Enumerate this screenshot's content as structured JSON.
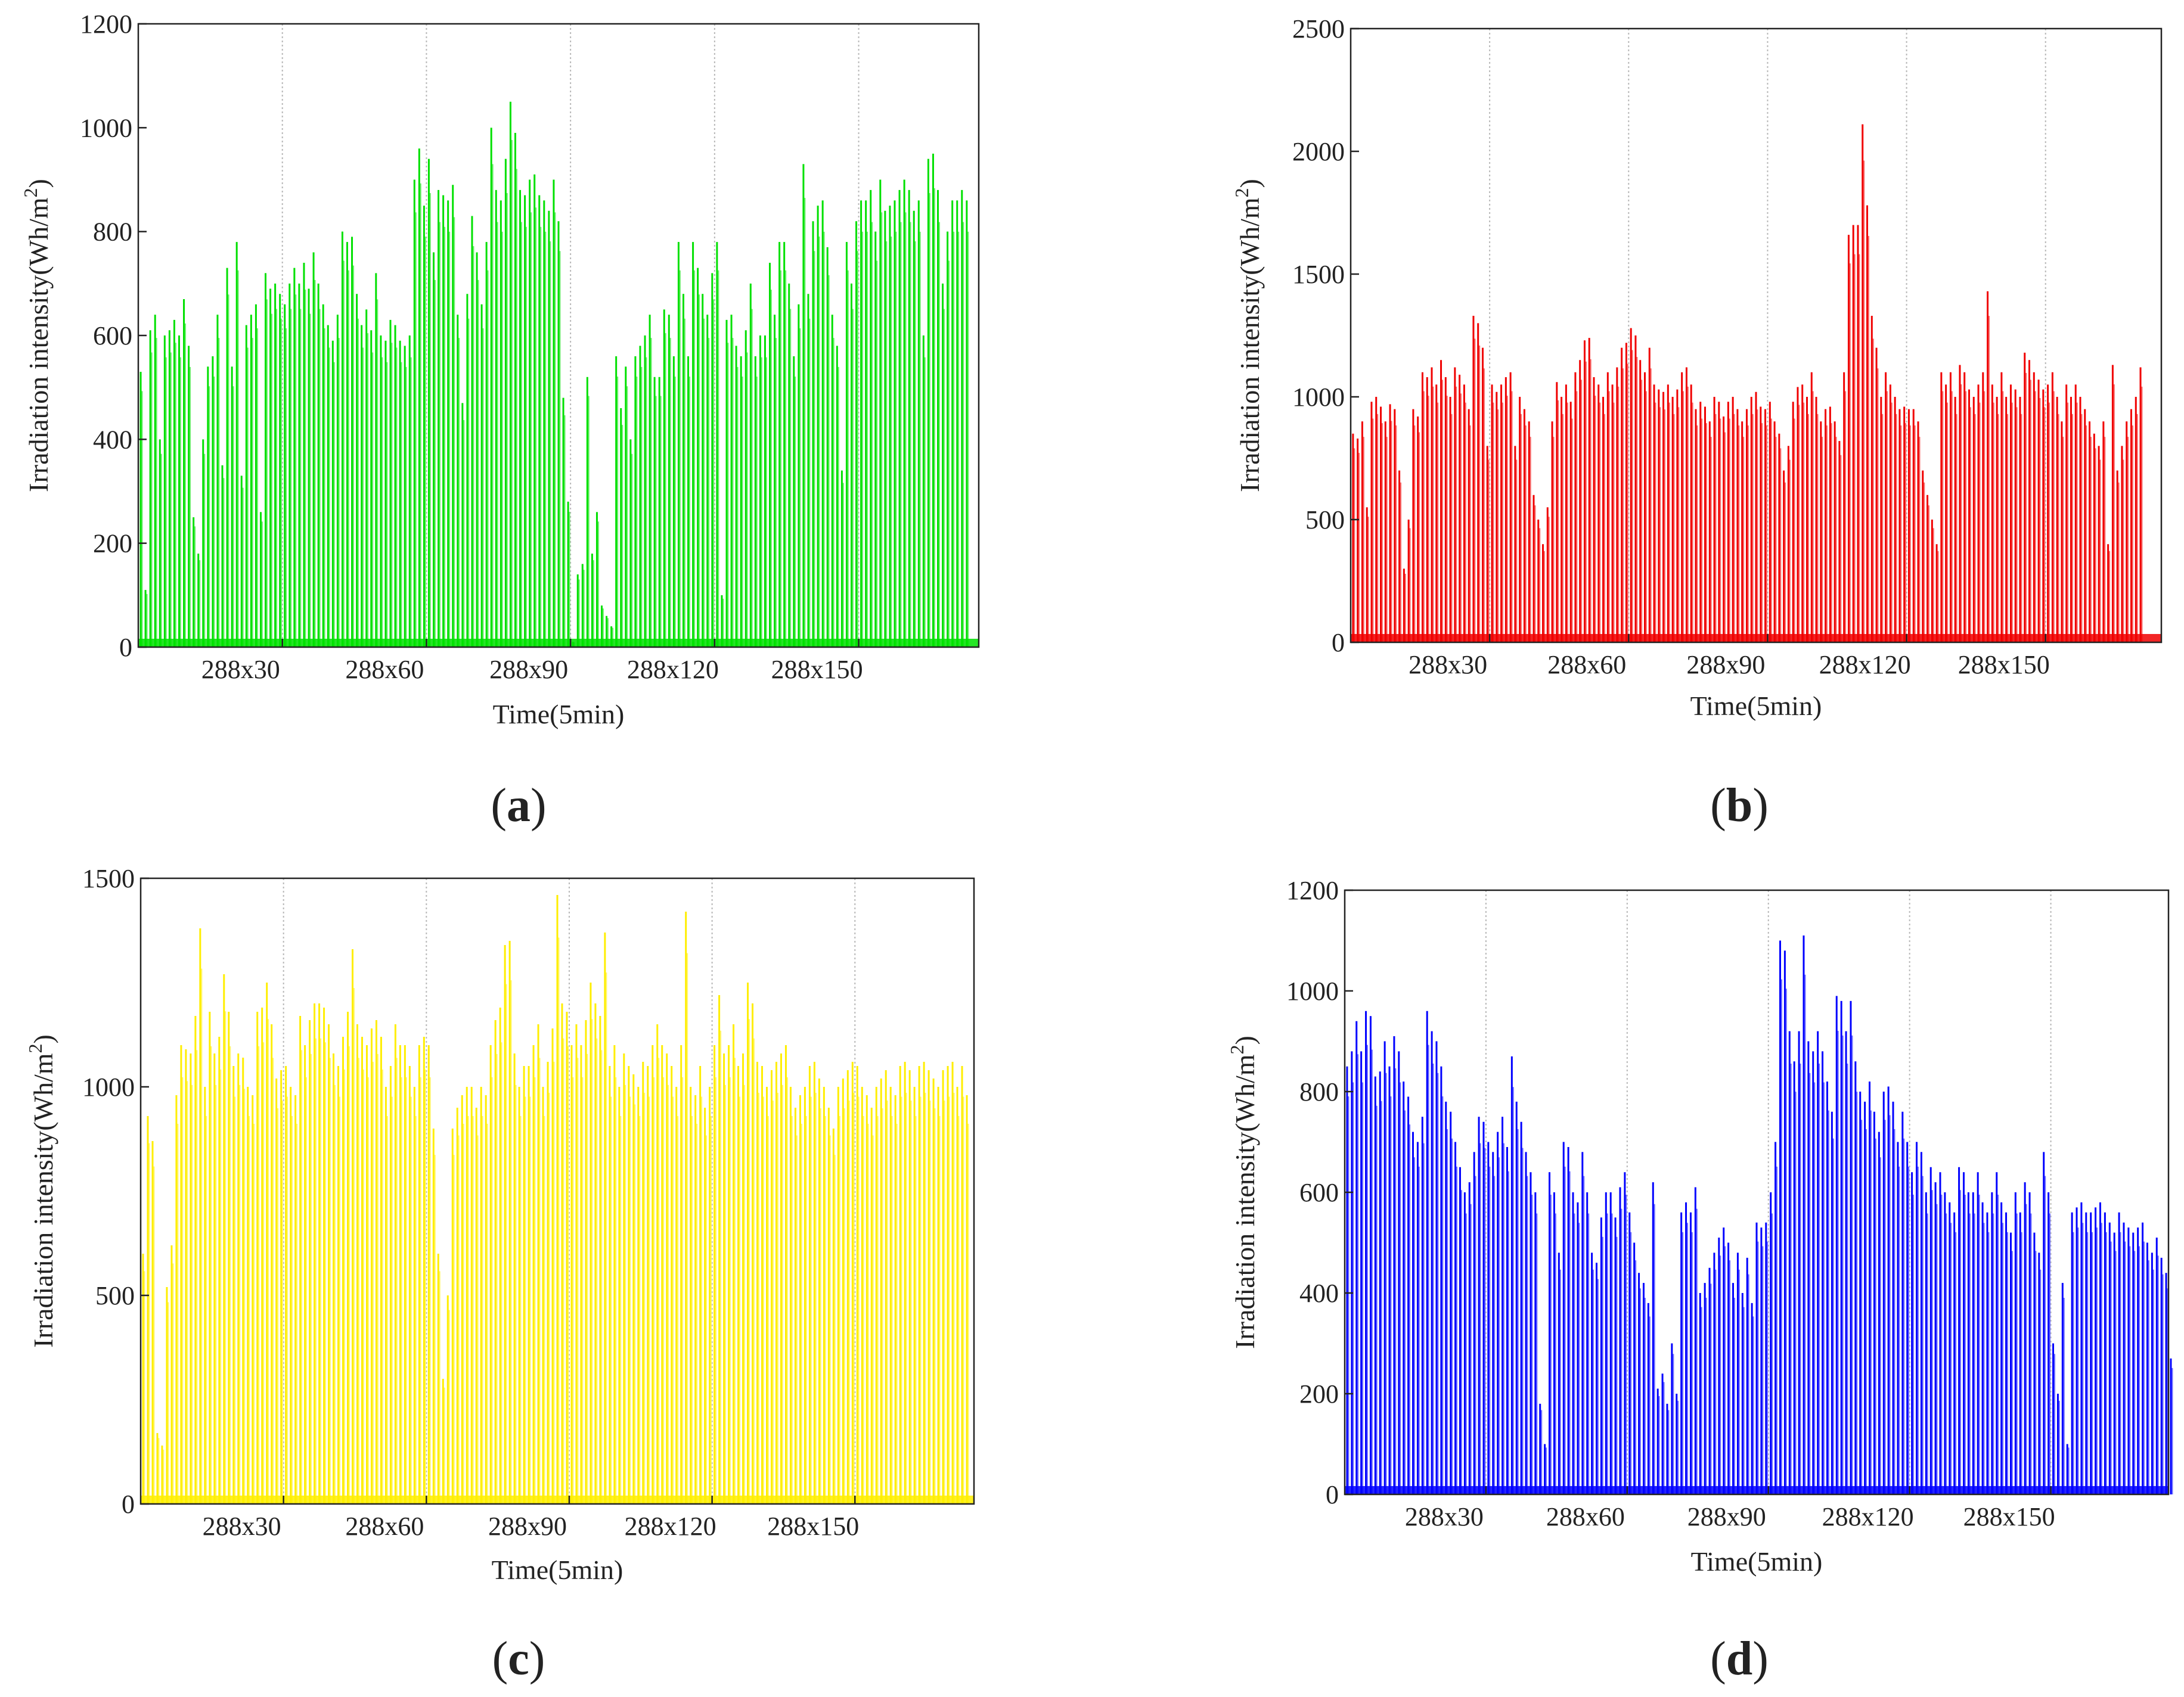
{
  "figure": {
    "x_tick_labels": [
      "288x30",
      "288x60",
      "288x90",
      "288x120",
      "288x150"
    ],
    "ylabel_main": "Irradiation intensity(Wh/m",
    "ylabel_sup": "2",
    "ylabel_close": ")",
    "xlabel": "Time(5min)"
  },
  "chart_data": [
    {
      "type": "bar",
      "panel": "a",
      "caption_open": "(",
      "caption_letter": "a",
      "caption_close": ")",
      "color": "#00e000",
      "xlabel": "Time(5min)",
      "ylabel": "Irradiation intensity(Wh/m2)",
      "x_unit": "days (288 five-minute samples per day)",
      "xlim": [
        0,
        175
      ],
      "ylim": [
        0,
        1200
      ],
      "yticks": [
        0,
        200,
        400,
        600,
        800,
        1000,
        1200
      ],
      "ytick_labels": [
        "0",
        "200",
        "400",
        "600",
        "800",
        "1000",
        "1200"
      ],
      "xticks": [
        30,
        60,
        90,
        120,
        150
      ],
      "grid": "vertical dotted at x ticks",
      "daily_peaks": [
        530,
        110,
        610,
        640,
        400,
        600,
        610,
        630,
        600,
        670,
        580,
        250,
        180,
        400,
        540,
        560,
        640,
        350,
        730,
        540,
        780,
        330,
        620,
        640,
        660,
        260,
        720,
        690,
        700,
        680,
        660,
        700,
        730,
        700,
        740,
        690,
        760,
        700,
        660,
        620,
        590,
        640,
        800,
        780,
        790,
        680,
        620,
        650,
        610,
        720,
        600,
        590,
        630,
        620,
        590,
        580,
        600,
        900,
        960,
        850,
        940,
        760,
        880,
        870,
        860,
        890,
        640,
        470,
        680,
        830,
        760,
        660,
        780,
        1000,
        880,
        860,
        940,
        1050,
        990,
        880,
        870,
        900,
        910,
        870,
        860,
        840,
        900,
        820,
        480,
        280,
        10,
        140,
        160,
        520,
        180,
        260,
        80,
        60,
        40,
        560,
        460,
        540,
        400,
        560,
        580,
        600,
        640,
        520,
        520,
        650,
        640,
        560,
        780,
        680,
        560,
        780,
        730,
        680,
        640,
        720,
        780,
        100,
        630,
        640,
        580,
        560,
        610,
        700,
        560,
        600,
        600,
        740,
        640,
        780,
        780,
        700,
        560,
        660,
        930,
        680,
        820,
        850,
        860,
        770,
        640,
        580,
        340,
        780,
        700,
        820,
        860,
        860,
        880,
        800,
        900,
        840,
        850,
        860,
        880,
        900,
        880,
        840,
        860,
        600,
        940,
        950,
        880,
        700,
        800,
        860,
        860,
        880,
        860
      ]
    },
    {
      "type": "bar",
      "panel": "b",
      "caption_open": "(",
      "caption_letter": "b",
      "caption_close": ")",
      "color": "#f00000",
      "xlabel": "Time(5min)",
      "ylabel": "Irradiation intensity(Wh/m2)",
      "x_unit": "days (288 five-minute samples per day)",
      "xlim": [
        0,
        175
      ],
      "ylim": [
        0,
        2500
      ],
      "yticks": [
        0,
        500,
        1000,
        1500,
        2000,
        2500
      ],
      "ytick_labels": [
        "0",
        "500",
        "1000",
        "1500",
        "2000",
        "2500"
      ],
      "xticks": [
        30,
        60,
        90,
        120,
        150
      ],
      "grid": "vertical dotted at x ticks",
      "daily_peaks": [
        850,
        830,
        900,
        550,
        980,
        1000,
        960,
        900,
        970,
        950,
        700,
        300,
        500,
        950,
        920,
        1100,
        1080,
        1120,
        1050,
        1150,
        1080,
        1000,
        1120,
        1090,
        1050,
        950,
        1330,
        1300,
        1200,
        800,
        1050,
        1020,
        1050,
        1080,
        1100,
        800,
        1000,
        950,
        900,
        600,
        500,
        400,
        550,
        900,
        1060,
        1000,
        1050,
        980,
        1100,
        1150,
        1230,
        1240,
        1080,
        1050,
        1000,
        1100,
        1050,
        1120,
        1200,
        1220,
        1280,
        1250,
        1150,
        1100,
        1200,
        1050,
        1030,
        1020,
        1050,
        1000,
        1030,
        1100,
        1120,
        1050,
        950,
        980,
        960,
        900,
        1000,
        980,
        920,
        980,
        1000,
        950,
        900,
        950,
        1000,
        1020,
        960,
        950,
        980,
        900,
        850,
        700,
        800,
        980,
        1040,
        1050,
        1000,
        1100,
        1000,
        900,
        950,
        960,
        900,
        820,
        1100,
        1660,
        1700,
        1700,
        2110,
        1780,
        1330,
        1200,
        1000,
        1100,
        1050,
        1000,
        950,
        960,
        950,
        950,
        900,
        700,
        600,
        500,
        400,
        1100,
        1050,
        1100,
        1000,
        1130,
        1100,
        1030,
        1000,
        1050,
        1100,
        1430,
        1050,
        1000,
        1100,
        1000,
        1050,
        1030,
        1000,
        1180,
        1150,
        1100,
        1070,
        1030,
        1050,
        1100,
        1000,
        900,
        1050,
        1000,
        1050,
        1000,
        950,
        900,
        850,
        800,
        900,
        400,
        1130,
        700,
        800,
        900,
        950,
        1000,
        1120
      ]
    },
    {
      "type": "bar",
      "panel": "c",
      "caption_open": "(",
      "caption_letter": "c",
      "caption_close": ")",
      "color": "#ffee00",
      "xlabel": "Time(5min)",
      "ylabel": "Irradiation intensity(Wh/m2)",
      "x_unit": "days (288 five-minute samples per day)",
      "xlim": [
        0,
        175
      ],
      "ylim": [
        0,
        1500
      ],
      "yticks": [
        0,
        500,
        1000,
        1500
      ],
      "ytick_labels": [
        "0",
        "500",
        "1000",
        "1500"
      ],
      "xticks": [
        30,
        60,
        90,
        120,
        150
      ],
      "grid": "vertical dotted at x ticks",
      "daily_peaks": [
        600,
        930,
        870,
        170,
        140,
        520,
        620,
        980,
        1100,
        1090,
        1080,
        1170,
        1380,
        1000,
        1180,
        1080,
        1120,
        1270,
        1180,
        1050,
        1080,
        1070,
        1000,
        980,
        1180,
        1190,
        1250,
        1150,
        1020,
        1040,
        1050,
        1000,
        980,
        1170,
        1100,
        1160,
        1200,
        1200,
        1190,
        1150,
        1080,
        1050,
        1120,
        1180,
        1330,
        1150,
        1120,
        1100,
        1140,
        1160,
        1120,
        1000,
        1050,
        1150,
        1100,
        1100,
        1050,
        1000,
        1100,
        1120,
        1100,
        900,
        600,
        300,
        500,
        900,
        950,
        980,
        1000,
        1000,
        950,
        1000,
        980,
        1100,
        1160,
        1190,
        1340,
        1350,
        1080,
        1000,
        1050,
        1050,
        1100,
        1150,
        1000,
        1060,
        1140,
        1460,
        1200,
        1180,
        1100,
        1150,
        1100,
        1160,
        1250,
        1200,
        1170,
        1370,
        1050,
        1100,
        1000,
        1080,
        1050,
        1030,
        1000,
        1060,
        1050,
        1100,
        1150,
        1100,
        1080,
        1050,
        1000,
        1100,
        1420,
        1000,
        980,
        1050,
        950,
        1000,
        1100,
        1220,
        1080,
        1100,
        1150,
        1050,
        1080,
        1250,
        1200,
        1060,
        1050,
        1000,
        1040,
        1060,
        1080,
        1100,
        1000,
        950,
        980,
        1000,
        1050,
        1060,
        1020,
        1000,
        950,
        900,
        1000,
        1020,
        1040,
        1060,
        1050,
        1000,
        980,
        950,
        1000,
        1020,
        1040,
        1000,
        980,
        1050,
        1060,
        1040,
        1000,
        1050,
        1060,
        1040,
        1020,
        1000,
        1040,
        1050,
        1060,
        1000,
        1050,
        980
      ]
    },
    {
      "type": "bar",
      "panel": "d",
      "caption_open": "(",
      "caption_letter": "d",
      "caption_close": ")",
      "color": "#0000ff",
      "xlabel": "Time(5min)",
      "ylabel": "Irradiation intensity(Wh/m2)",
      "x_unit": "days (288 five-minute samples per day)",
      "xlim": [
        0,
        175
      ],
      "ylim": [
        0,
        1200
      ],
      "yticks": [
        0,
        200,
        400,
        600,
        800,
        1000,
        1200
      ],
      "ytick_labels": [
        "0",
        "200",
        "400",
        "600",
        "800",
        "1000",
        "1200"
      ],
      "xticks": [
        30,
        60,
        90,
        120,
        150
      ],
      "grid": "vertical dotted at x ticks",
      "daily_peaks": [
        850,
        880,
        940,
        880,
        960,
        950,
        830,
        840,
        900,
        850,
        910,
        880,
        820,
        790,
        720,
        700,
        750,
        960,
        920,
        900,
        850,
        780,
        760,
        700,
        650,
        600,
        620,
        680,
        750,
        740,
        700,
        680,
        720,
        750,
        690,
        870,
        780,
        740,
        680,
        640,
        600,
        180,
        100,
        640,
        600,
        480,
        700,
        690,
        600,
        580,
        680,
        600,
        480,
        460,
        550,
        600,
        600,
        550,
        610,
        640,
        560,
        500,
        440,
        420,
        380,
        620,
        210,
        240,
        180,
        300,
        200,
        560,
        580,
        560,
        610,
        400,
        420,
        450,
        480,
        510,
        530,
        500,
        420,
        480,
        400,
        470,
        380,
        540,
        530,
        540,
        600,
        700,
        1100,
        1080,
        920,
        860,
        920,
        1110,
        900,
        880,
        920,
        880,
        820,
        760,
        990,
        980,
        920,
        980,
        860,
        800,
        780,
        820,
        760,
        720,
        800,
        810,
        780,
        700,
        760,
        700,
        640,
        700,
        680,
        600,
        650,
        620,
        640,
        600,
        580,
        560,
        650,
        640,
        600,
        600,
        640,
        580,
        560,
        600,
        640,
        580,
        560,
        520,
        600,
        560,
        620,
        600,
        520,
        480,
        680,
        600,
        300,
        200,
        420,
        100,
        560,
        570,
        580,
        560,
        560,
        570,
        580,
        560,
        540,
        520,
        560,
        540,
        530,
        520,
        530,
        540,
        500,
        480,
        510,
        470,
        440,
        270
      ]
    }
  ]
}
